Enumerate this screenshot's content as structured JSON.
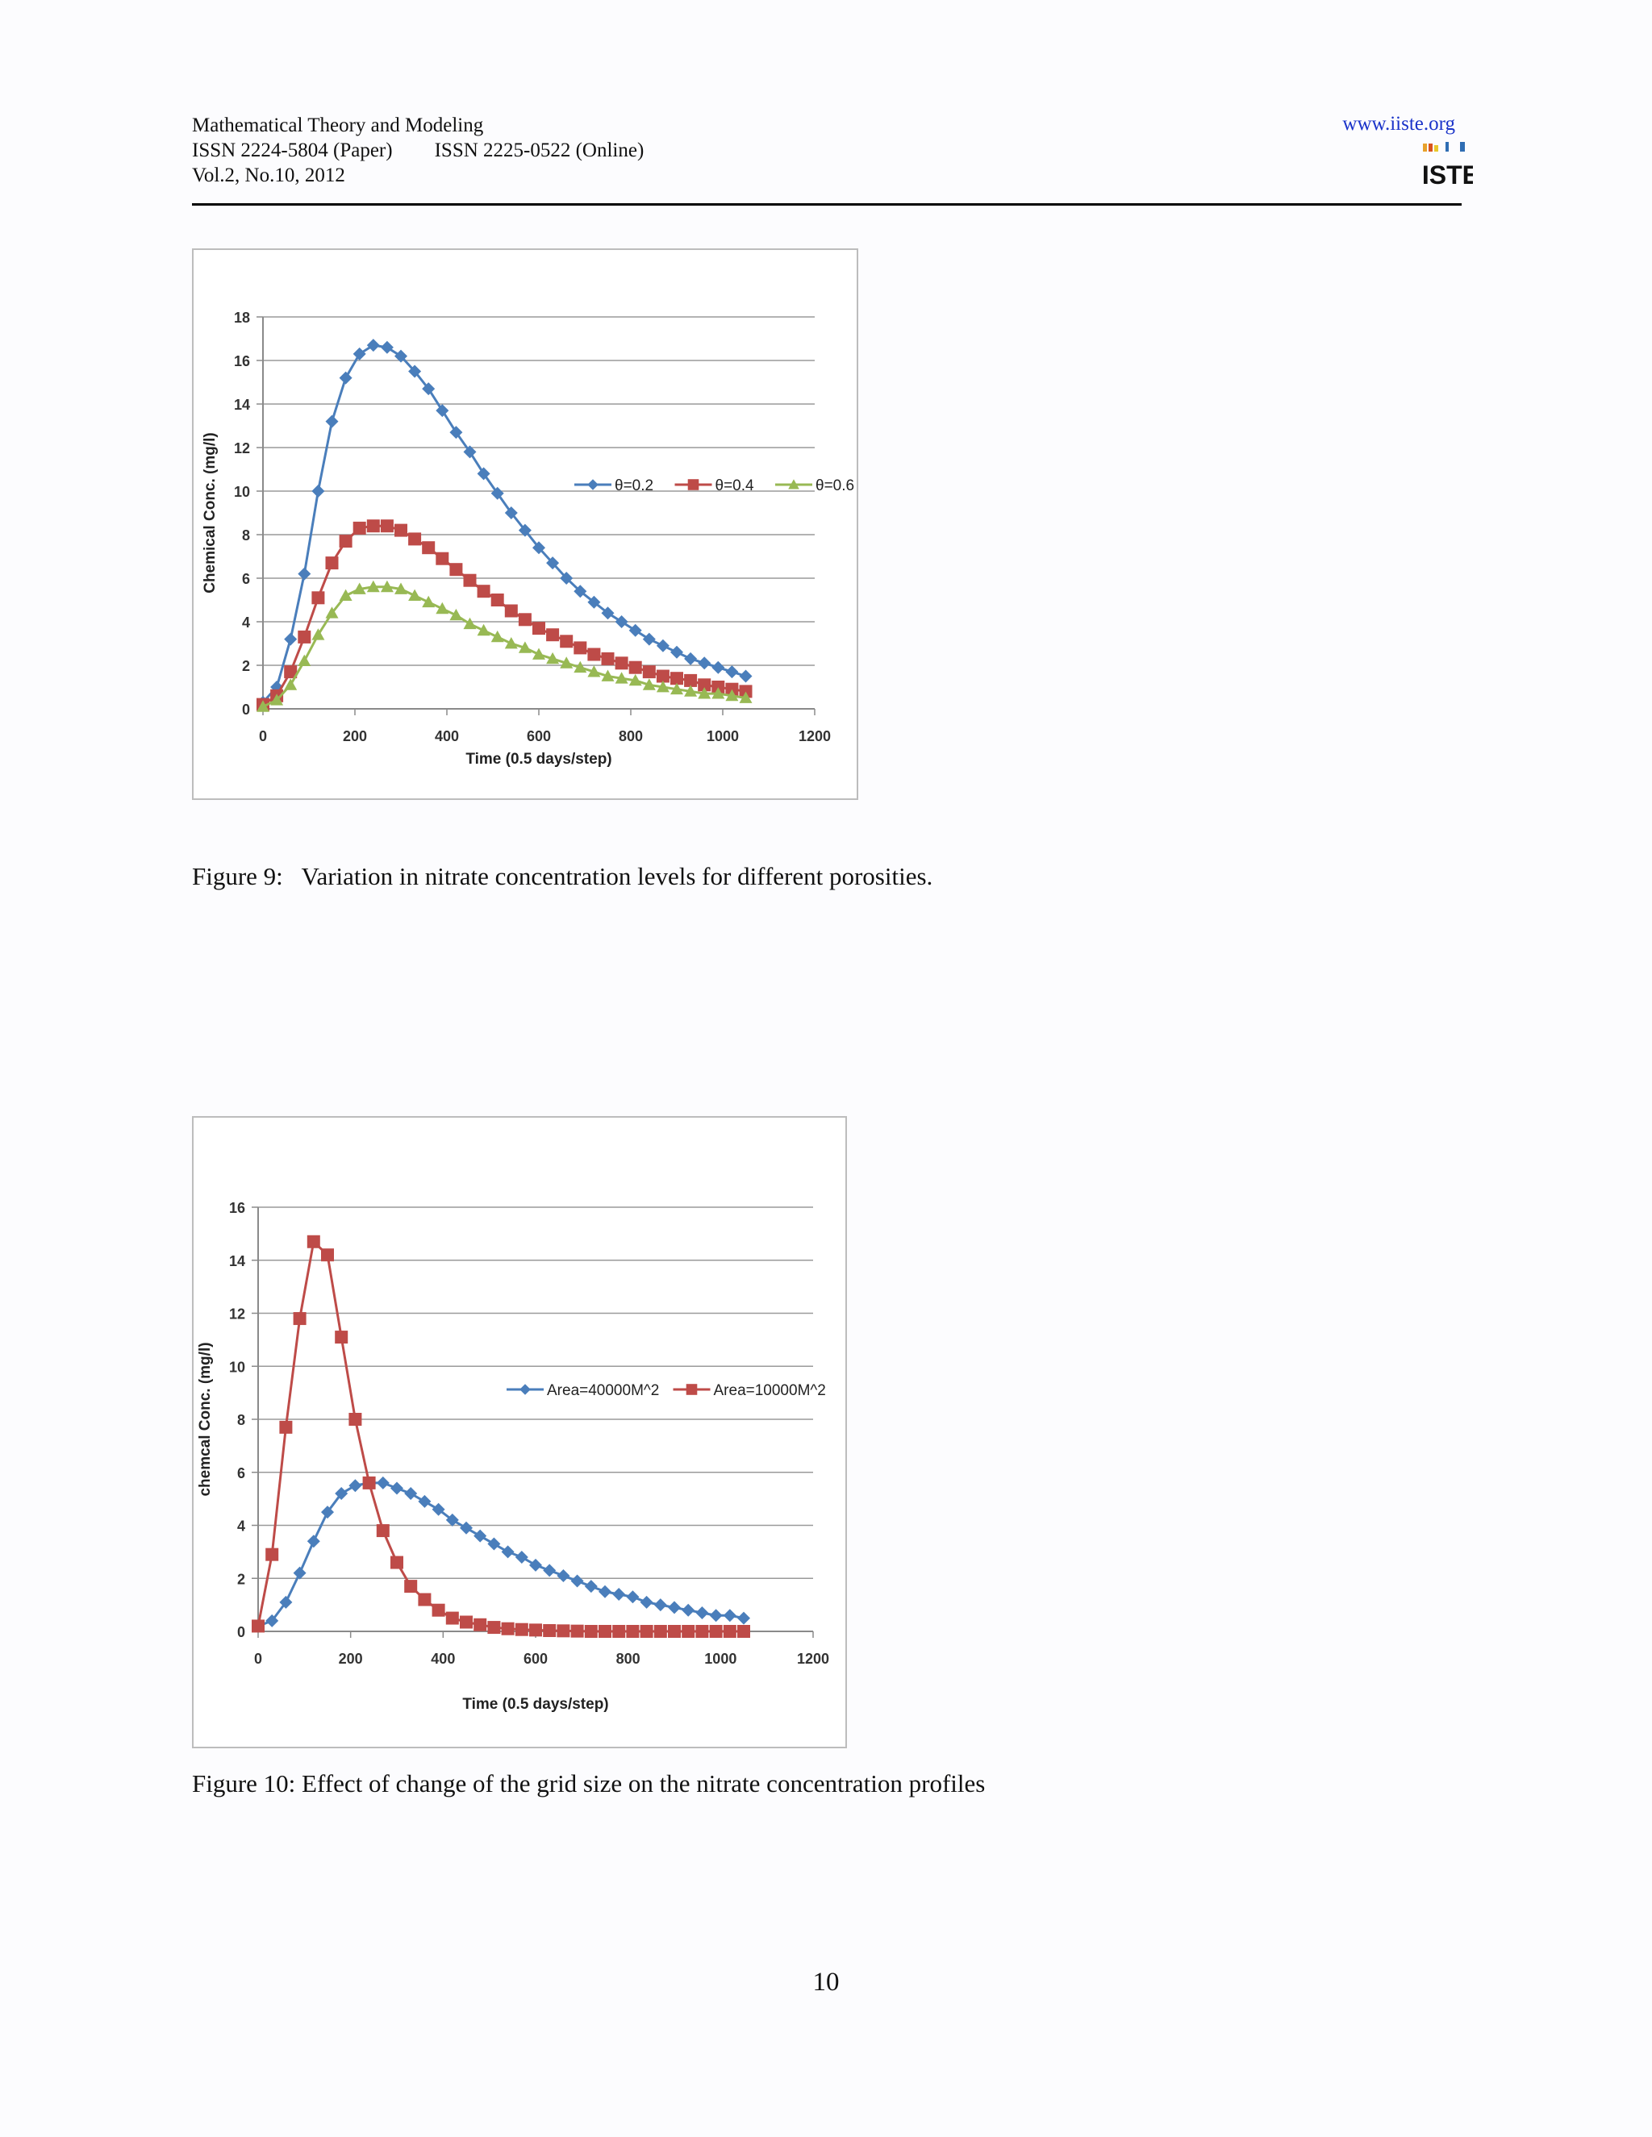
{
  "header": {
    "journal": "Mathematical Theory and Modeling",
    "issn_paper": "ISSN 2224-5804 (Paper)",
    "issn_online": "ISSN 2225-0522 (Online)",
    "volume": "Vol.2, No.10, 2012",
    "url": "www.iiste.org",
    "logo_text": "IISTE"
  },
  "figure9": {
    "caption": "Figure 9:   Variation in nitrate concentration levels for different porosities."
  },
  "figure10": {
    "caption": "Figure 10: Effect of change of the grid size on the nitrate concentration profiles"
  },
  "page_number": "10",
  "chart_data": [
    {
      "type": "line",
      "xlabel": "Time (0.5 days/step)",
      "ylabel": "Chemical Conc. (mg/l)",
      "xlim": [
        0,
        1200
      ],
      "ylim": [
        0,
        18
      ],
      "xticks": [
        "0",
        "200",
        "400",
        "600",
        "800",
        "1000",
        "1200"
      ],
      "yticks": [
        "0",
        "2",
        "4",
        "6",
        "8",
        "10",
        "12",
        "14",
        "16",
        "18"
      ],
      "grid": true,
      "legend": "right",
      "x": [
        0,
        30,
        60,
        90,
        120,
        150,
        180,
        210,
        240,
        270,
        300,
        330,
        360,
        390,
        420,
        450,
        480,
        510,
        540,
        570,
        600,
        630,
        660,
        690,
        720,
        750,
        780,
        810,
        840,
        870,
        900,
        930,
        960,
        990,
        1020,
        1050
      ],
      "series": [
        {
          "name": "θ=0.2",
          "color": "#4a7ebb",
          "marker": "diamond",
          "values": [
            0.3,
            1.0,
            3.2,
            6.2,
            10.0,
            13.2,
            15.2,
            16.3,
            16.7,
            16.6,
            16.2,
            15.5,
            14.7,
            13.7,
            12.7,
            11.8,
            10.8,
            9.9,
            9.0,
            8.2,
            7.4,
            6.7,
            6.0,
            5.4,
            4.9,
            4.4,
            4.0,
            3.6,
            3.2,
            2.9,
            2.6,
            2.3,
            2.1,
            1.9,
            1.7,
            1.5
          ]
        },
        {
          "name": "θ=0.4",
          "color": "#be4b48",
          "marker": "square",
          "values": [
            0.2,
            0.6,
            1.7,
            3.3,
            5.1,
            6.7,
            7.7,
            8.3,
            8.4,
            8.4,
            8.2,
            7.8,
            7.4,
            6.9,
            6.4,
            5.9,
            5.4,
            5.0,
            4.5,
            4.1,
            3.7,
            3.4,
            3.1,
            2.8,
            2.5,
            2.3,
            2.1,
            1.9,
            1.7,
            1.5,
            1.4,
            1.3,
            1.1,
            1.0,
            0.9,
            0.8
          ]
        },
        {
          "name": "θ=0.6",
          "color": "#98b954",
          "marker": "triangle",
          "values": [
            0.1,
            0.4,
            1.1,
            2.2,
            3.4,
            4.4,
            5.2,
            5.5,
            5.6,
            5.6,
            5.5,
            5.2,
            4.9,
            4.6,
            4.3,
            3.9,
            3.6,
            3.3,
            3.0,
            2.8,
            2.5,
            2.3,
            2.1,
            1.9,
            1.7,
            1.5,
            1.4,
            1.3,
            1.1,
            1.0,
            0.9,
            0.8,
            0.7,
            0.7,
            0.6,
            0.5
          ]
        }
      ]
    },
    {
      "type": "line",
      "xlabel": "Time (0.5 days/step)",
      "ylabel": "chemcal Conc. (mg/l)",
      "xlim": [
        0,
        1200
      ],
      "ylim": [
        0,
        16
      ],
      "xticks": [
        "0",
        "200",
        "400",
        "600",
        "800",
        "1000",
        "1200"
      ],
      "yticks": [
        "0",
        "2",
        "4",
        "6",
        "8",
        "10",
        "12",
        "14",
        "16"
      ],
      "grid": true,
      "legend": "right",
      "x": [
        0,
        30,
        60,
        90,
        120,
        150,
        180,
        210,
        240,
        270,
        300,
        330,
        360,
        390,
        420,
        450,
        480,
        510,
        540,
        570,
        600,
        630,
        660,
        690,
        720,
        750,
        780,
        810,
        840,
        870,
        900,
        930,
        960,
        990,
        1020,
        1050
      ],
      "series": [
        {
          "name": "Area=40000M^2",
          "color": "#4a7ebb",
          "marker": "diamond",
          "values": [
            0.2,
            0.4,
            1.1,
            2.2,
            3.4,
            4.5,
            5.2,
            5.5,
            5.6,
            5.6,
            5.4,
            5.2,
            4.9,
            4.6,
            4.2,
            3.9,
            3.6,
            3.3,
            3.0,
            2.8,
            2.5,
            2.3,
            2.1,
            1.9,
            1.7,
            1.5,
            1.4,
            1.3,
            1.1,
            1.0,
            0.9,
            0.8,
            0.7,
            0.6,
            0.6,
            0.5
          ]
        },
        {
          "name": "Area=10000M^2",
          "color": "#be4b48",
          "marker": "square",
          "values": [
            0.2,
            2.9,
            7.7,
            11.8,
            14.7,
            14.2,
            11.1,
            8.0,
            5.6,
            3.8,
            2.6,
            1.7,
            1.2,
            0.8,
            0.5,
            0.35,
            0.25,
            0.15,
            0.1,
            0.07,
            0.05,
            0.03,
            0.02,
            0.01,
            0,
            0,
            0,
            0,
            0,
            0,
            0,
            0,
            0,
            0,
            0,
            0
          ]
        }
      ]
    }
  ]
}
